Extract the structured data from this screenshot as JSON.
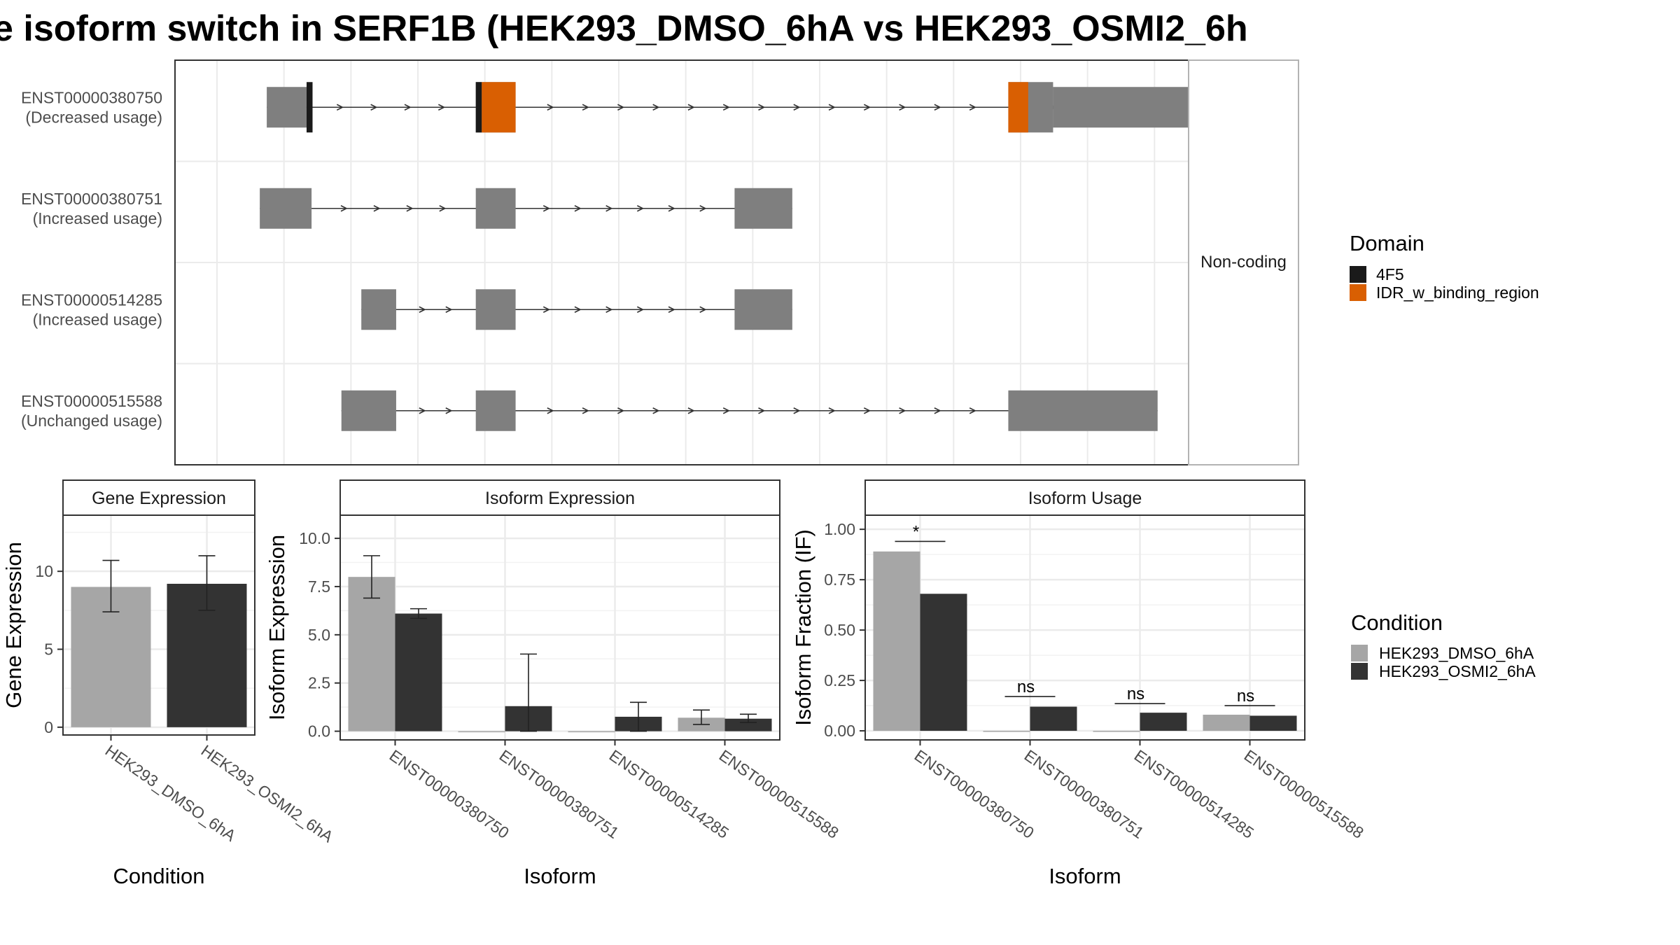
{
  "title": "e isoform switch in SERF1B (HEK293_DMSO_6hA vs HEK293_OSMI2_6h",
  "colors": {
    "domain_4F5": "#1a1a1a",
    "domain_IDR": "#d95f02",
    "exon": "#7f7f7f",
    "dmso": "#a6a6a6",
    "osmi2": "#333333",
    "panel_border": "#333333",
    "strip_border": "#b3b3b3",
    "grid": "#ebebeb"
  },
  "chart_data": [
    {
      "type": "gene_structure",
      "strip_label": "Non-coding",
      "x_range": [
        0,
        100
      ],
      "legend_title": "Domain",
      "legend": [
        {
          "label": "4F5",
          "color_key": "domain_4F5"
        },
        {
          "label": "IDR_w_binding_region",
          "color_key": "domain_IDR"
        }
      ],
      "transcripts": [
        {
          "id": "ENST00000380750",
          "usage": "(Decreased usage)",
          "exons": [
            {
              "start": 5.0,
              "end": 9.0,
              "type": "utr"
            },
            {
              "start": 26.0,
              "end": 30.0,
              "type": "cds"
            },
            {
              "start": 79.5,
              "end": 84.0,
              "type": "cds"
            },
            {
              "start": 84.0,
              "end": 104.0,
              "type": "utr"
            }
          ],
          "domains": [
            {
              "start": 9.0,
              "end": 9.6,
              "domain": "4F5"
            },
            {
              "start": 26.0,
              "end": 26.6,
              "domain": "4F5"
            },
            {
              "start": 26.6,
              "end": 30.0,
              "domain": "IDR_w_binding_region"
            },
            {
              "start": 79.5,
              "end": 81.5,
              "domain": "IDR_w_binding_region"
            }
          ]
        },
        {
          "id": "ENST00000380751",
          "usage": "(Increased usage)",
          "exons": [
            {
              "start": 4.3,
              "end": 9.5,
              "type": "utr"
            },
            {
              "start": 26.0,
              "end": 30.0,
              "type": "utr"
            },
            {
              "start": 52.0,
              "end": 57.8,
              "type": "utr"
            }
          ],
          "domains": []
        },
        {
          "id": "ENST00000514285",
          "usage": "(Increased usage)",
          "exons": [
            {
              "start": 14.5,
              "end": 18.0,
              "type": "utr"
            },
            {
              "start": 26.0,
              "end": 30.0,
              "type": "utr"
            },
            {
              "start": 52.0,
              "end": 57.8,
              "type": "utr"
            }
          ],
          "domains": []
        },
        {
          "id": "ENST00000515588",
          "usage": "(Unchanged usage)",
          "exons": [
            {
              "start": 12.5,
              "end": 18.0,
              "type": "utr"
            },
            {
              "start": 26.0,
              "end": 30.0,
              "type": "utr"
            },
            {
              "start": 79.5,
              "end": 94.5,
              "type": "utr"
            }
          ],
          "domains": []
        }
      ]
    },
    {
      "type": "bar",
      "strip_label": "Gene Expression",
      "xlabel": "Condition",
      "ylabel": "Gene Expression",
      "ylim": [
        -0.5,
        13.6
      ],
      "yticks": [
        0,
        5,
        10
      ],
      "ytick_labels": [
        "0",
        "5",
        "10"
      ],
      "categories": [
        "HEK293_DMSO_6hA",
        "HEK293_OSMI2_6hA"
      ],
      "series": [
        {
          "color_key": "dmso",
          "values": [
            9.0,
            null
          ],
          "err_low": [
            7.4,
            null
          ],
          "err_high": [
            10.7,
            null
          ]
        },
        {
          "color_key": "osmi2",
          "values": [
            null,
            9.2
          ],
          "err_low": [
            null,
            7.5
          ],
          "err_high": [
            null,
            11.0
          ]
        }
      ]
    },
    {
      "type": "bar",
      "strip_label": "Isoform Expression",
      "xlabel": "Isoform",
      "ylabel": "Isoform Expression",
      "ylim": [
        -0.45,
        11.2
      ],
      "yticks": [
        0,
        2.5,
        5,
        7.5,
        10
      ],
      "ytick_labels": [
        "0.0",
        "2.5",
        "5.0",
        "7.5",
        "10.0"
      ],
      "categories": [
        "ENST00000380750",
        "ENST00000380751",
        "ENST00000514285",
        "ENST00000515588"
      ],
      "series": [
        {
          "name": "HEK293_DMSO_6hA",
          "color_key": "dmso",
          "values": [
            8.0,
            0.0,
            0.0,
            0.7
          ],
          "err_low": [
            6.9,
            0.0,
            0.0,
            0.35
          ],
          "err_high": [
            9.1,
            0.0,
            0.0,
            1.1
          ]
        },
        {
          "name": "HEK293_OSMI2_6hA",
          "color_key": "osmi2",
          "values": [
            6.1,
            1.3,
            0.75,
            0.65
          ],
          "err_low": [
            5.85,
            0.0,
            0.0,
            0.45
          ],
          "err_high": [
            6.35,
            4.0,
            1.5,
            0.88
          ]
        }
      ]
    },
    {
      "type": "bar",
      "strip_label": "Isoform Usage",
      "xlabel": "Isoform",
      "ylabel": "Isoform Fraction (IF)",
      "ylim": [
        -0.045,
        1.07
      ],
      "yticks": [
        0,
        0.25,
        0.5,
        0.75,
        1.0
      ],
      "ytick_labels": [
        "0.00",
        "0.25",
        "0.50",
        "0.75",
        "1.00"
      ],
      "categories": [
        "ENST00000380750",
        "ENST00000380751",
        "ENST00000514285",
        "ENST00000515588"
      ],
      "series": [
        {
          "name": "HEK293_DMSO_6hA",
          "color_key": "dmso",
          "values": [
            0.89,
            0.0,
            0.0,
            0.08
          ]
        },
        {
          "name": "HEK293_OSMI2_6hA",
          "color_key": "osmi2",
          "values": [
            0.68,
            0.12,
            0.09,
            0.075
          ]
        }
      ],
      "significance": [
        {
          "label": "*",
          "y": 0.94
        },
        {
          "label": "ns",
          "y": 0.17
        },
        {
          "label": "ns",
          "y": 0.135
        },
        {
          "label": "ns",
          "y": 0.125
        }
      ]
    }
  ],
  "condition_legend": {
    "title": "Condition",
    "items": [
      {
        "label": "HEK293_DMSO_6hA",
        "color_key": "dmso"
      },
      {
        "label": "HEK293_OSMI2_6hA",
        "color_key": "osmi2"
      }
    ]
  }
}
